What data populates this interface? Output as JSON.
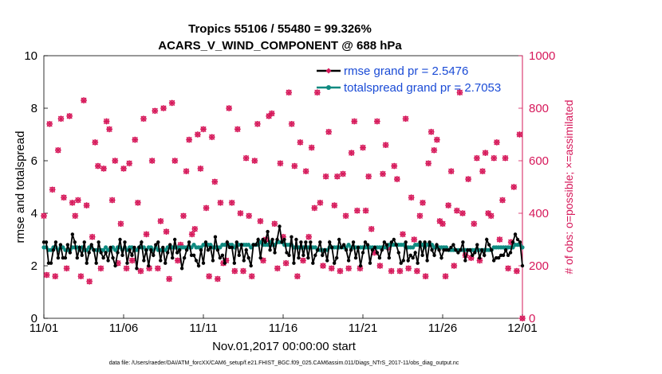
{
  "chart_data": {
    "type": "line",
    "title_line1": "Tropics 55106 / 55480 = 99.326%",
    "title_line2": "ACARS_V_WIND_COMPONENT @ 688 hPa",
    "xlabel": "Nov.01,2017 00:00:00 start",
    "ylabel_left": "rmse and totalspread",
    "ylabel_right": "# of obs: o=possible; ×=assimilated",
    "footer": "data file: /Users/raeder/DAI/ATM_forcXX/CAM6_setup/f.e21.FHIST_BGC.f09_025.CAM6assim.011/Diags_NTrS_2017-11/obs_diag_output.nc",
    "x_ticks": [
      "11/01",
      "11/06",
      "11/11",
      "11/16",
      "11/21",
      "11/26",
      "12/01"
    ],
    "x_tick_days": [
      0,
      5,
      10,
      15,
      20,
      25,
      30
    ],
    "xlim": [
      0,
      30
    ],
    "ylim_left": [
      0,
      10
    ],
    "y_ticks_left": [
      "0",
      "2",
      "4",
      "6",
      "8",
      "10"
    ],
    "ylim_right": [
      0,
      1000
    ],
    "y_ticks_right": [
      "0",
      "200",
      "400",
      "600",
      "800",
      "1000"
    ],
    "colors": {
      "rmse": "#000000",
      "spread": "#0e8a80",
      "obs": "#d6185a",
      "legend_text": "#1a4bd6",
      "axis_right": "#d6185a"
    },
    "series": [
      {
        "name": "rmse grand pr = 2.5476",
        "axis": "left",
        "values": [
          2.9,
          2.9,
          2.1,
          2.1,
          2.6,
          2.9,
          2.3,
          2.8,
          2.3,
          2.3,
          2.8,
          2.5,
          3.2,
          2.9,
          2.3,
          2.7,
          2.4,
          2.9,
          2.1,
          2.5,
          2.8,
          2.6,
          2.1,
          2.9,
          2.5,
          2.3,
          2.5,
          2.2,
          2.7,
          2.3,
          2.0,
          2.5,
          3.0,
          2.4,
          2.9,
          2.1,
          2.6,
          2.4,
          2.7,
          1.9,
          2.7,
          2.9,
          2.2,
          2.6,
          2.0,
          2.6,
          2.4,
          2.8,
          2.9,
          2.2,
          2.7,
          2.1,
          2.5,
          2.8,
          2.3,
          3.0,
          2.5,
          2.6,
          1.9,
          2.3,
          2.6,
          2.9,
          2.4,
          2.4,
          2.2,
          2.0,
          2.6,
          2.1,
          2.9,
          2.6,
          2.7,
          2.2,
          3.1,
          2.6,
          2.3,
          2.4,
          2.1,
          2.9,
          2.7,
          2.7,
          2.1,
          2.9,
          2.4,
          2.8,
          2.2,
          2.6,
          2.3,
          2.0,
          2.8,
          2.8,
          3.0,
          2.3,
          3.0,
          2.9,
          3.3,
          2.6,
          3.0,
          2.5,
          3.0,
          3.5,
          2.9,
          3.0,
          2.5,
          2.4,
          3.1,
          2.1,
          3.0,
          2.3,
          2.9,
          2.4,
          2.9,
          2.3,
          2.9,
          2.1,
          2.4,
          2.6,
          2.9,
          2.4,
          2.6,
          2.2,
          2.9,
          2.7,
          2.1,
          2.3,
          3.0,
          2.7,
          2.8,
          2.6,
          2.2,
          2.6,
          2.9,
          2.3,
          2.7,
          2.0,
          2.5,
          2.9,
          2.8,
          2.1,
          2.6,
          2.7,
          2.5,
          2.3,
          2.6,
          2.9,
          2.8,
          2.3,
          2.9,
          3.0,
          2.8,
          2.5,
          2.1,
          2.2,
          2.9,
          2.2,
          2.4,
          2.3,
          2.5,
          2.1,
          2.9,
          2.4,
          2.9,
          2.2,
          2.9,
          2.6,
          2.4,
          2.8,
          2.6,
          2.3,
          2.6,
          2.6,
          2.6,
          2.7,
          2.8,
          2.6,
          2.5,
          2.6,
          2.9,
          2.2,
          2.6,
          2.6,
          2.4,
          2.5,
          2.8,
          2.3,
          2.6,
          2.4,
          3.0,
          2.8,
          2.6,
          2.2,
          2.3,
          2.3,
          2.4,
          2.4,
          2.6,
          2.4,
          2.5,
          2.9,
          3.2,
          3.0,
          2.9,
          2.0
        ]
      },
      {
        "name": "totalspread grand pr = 2.7053",
        "axis": "left",
        "values": [
          2.7,
          2.7,
          2.6,
          2.6,
          2.7,
          2.7,
          2.6,
          2.7,
          2.7,
          2.6,
          2.6,
          2.6,
          2.7,
          2.7,
          2.7,
          2.6,
          2.7,
          2.6,
          2.6,
          2.7,
          2.7,
          2.6,
          2.6,
          2.6,
          2.6,
          2.6,
          2.7,
          2.6,
          2.6,
          2.7,
          2.6,
          2.7,
          2.7,
          2.6,
          2.7,
          2.6,
          2.7,
          2.7,
          2.6,
          2.6,
          2.7,
          2.7,
          2.7,
          2.6,
          2.7,
          2.7,
          2.6,
          2.7,
          2.6,
          2.6,
          2.6,
          2.6,
          2.7,
          2.7,
          2.7,
          2.7,
          2.7,
          2.7,
          2.7,
          2.7,
          2.7,
          2.7,
          2.7,
          2.8,
          2.7,
          2.7,
          2.7,
          2.8,
          2.8,
          2.8,
          2.8,
          2.7,
          2.7,
          2.7,
          2.7,
          2.8,
          2.8,
          2.8,
          2.8,
          2.8,
          2.7,
          2.8,
          2.8,
          2.8,
          2.8,
          2.8,
          2.8,
          2.7,
          2.8,
          2.8,
          2.8,
          2.9,
          2.8,
          2.8,
          2.8,
          2.9,
          2.8,
          2.8,
          2.9,
          2.9,
          2.9,
          2.8,
          2.8,
          2.8,
          2.8,
          2.7,
          2.7,
          2.7,
          2.7,
          2.7,
          2.7,
          2.7,
          2.7,
          2.7,
          2.7,
          2.6,
          2.6,
          2.6,
          2.6,
          2.6,
          2.7,
          2.7,
          2.7,
          2.7,
          2.7,
          2.7,
          2.7,
          2.7,
          2.8,
          2.7,
          2.7,
          2.7,
          2.7,
          2.7,
          2.7,
          2.7,
          2.7,
          2.7,
          2.7,
          2.7,
          2.7,
          2.7,
          2.7,
          2.7,
          2.7,
          2.8,
          2.8,
          2.8,
          2.8,
          2.8,
          2.8,
          2.8,
          2.7,
          2.7,
          2.7,
          2.7,
          2.8,
          2.8,
          2.8,
          2.8,
          2.7,
          2.8,
          2.8,
          2.8,
          2.7,
          2.7,
          2.7,
          2.7,
          2.7,
          2.7,
          2.6,
          2.6,
          2.6,
          2.6,
          2.6,
          2.6,
          2.6,
          2.6,
          2.6,
          2.6,
          2.6,
          2.6,
          2.6,
          2.6,
          2.6,
          2.6,
          2.6,
          2.6,
          2.6,
          2.7,
          2.7,
          2.7,
          2.7,
          2.7,
          2.7,
          2.7,
          2.7,
          2.7,
          2.8,
          2.8,
          2.8,
          2.7
        ]
      },
      {
        "name": "obs possible / assimilated",
        "axis": "right",
        "values": [
          390,
          165,
          740,
          490,
          160,
          640,
          760,
          460,
          190,
          770,
          440,
          390,
          450,
          160,
          830,
          430,
          140,
          310,
          670,
          580,
          190,
          570,
          750,
          720,
          450,
          600,
          210,
          360,
          570,
          190,
          590,
          220,
          680,
          440,
          180,
          760,
          320,
          190,
          600,
          790,
          190,
          370,
          800,
          330,
          150,
          820,
          600,
          220,
          280,
          390,
          560,
          680,
          320,
          340,
          700,
          570,
          720,
          420,
          160,
          690,
          520,
          150,
          440,
          210,
          220,
          800,
          440,
          180,
          720,
          400,
          180,
          610,
          390,
          160,
          600,
          740,
          370,
          220,
          300,
          770,
          780,
          360,
          190,
          590,
          310,
          210,
          860,
          740,
          580,
          160,
          670,
          220,
          560,
          310,
          650,
          420,
          860,
          440,
          200,
          540,
          710,
          190,
          430,
          540,
          180,
          550,
          390,
          190,
          630,
          750,
          410,
          190,
          650,
          410,
          540,
          340,
          250,
          750,
          200,
          550,
          660,
          270,
          180,
          580,
          530,
          180,
          320,
          760,
          190,
          460,
          300,
          180,
          390,
          440,
          160,
          590,
          710,
          640,
          680,
          370,
          360,
          160,
          430,
          560,
          200,
          410,
          860,
          400,
          240,
          530,
          230,
          360,
          610,
          220,
          560,
          630,
          400,
          390,
          610,
          670,
          300,
          450,
          610,
          190,
          290,
          500,
          180,
          700,
          0
        ]
      }
    ]
  }
}
